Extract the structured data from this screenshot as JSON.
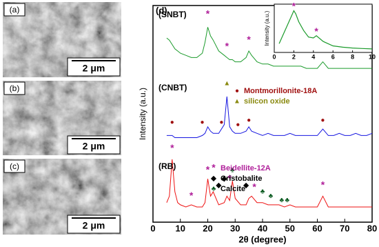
{
  "images": [
    {
      "label": "(a)",
      "scale": "2 μm"
    },
    {
      "label": "(b)",
      "scale": "2 μm"
    },
    {
      "label": "(c)",
      "scale": "2 μm"
    }
  ],
  "chart_data": [
    {
      "type": "line",
      "panel": "(d)",
      "xlabel": "2θ (degree)",
      "ylabel": "Intensity (a.u.)",
      "x": [
        5,
        6,
        7,
        8,
        9,
        10,
        12,
        14,
        16,
        18,
        19,
        20,
        21,
        22,
        24,
        26,
        27,
        28,
        29,
        30,
        32,
        34,
        35,
        36,
        38,
        40,
        42,
        44,
        46,
        48,
        50,
        52,
        54,
        56,
        58,
        60,
        62,
        64,
        66,
        68,
        70,
        72,
        74,
        76,
        78,
        80
      ],
      "series": [
        {
          "name": "(SNBT)",
          "color": "#1a9a2a",
          "values": [
            85,
            84,
            82,
            80,
            79,
            78,
            77,
            76,
            76,
            78,
            83,
            90,
            86,
            84,
            79,
            77,
            76,
            75,
            75,
            74,
            74,
            76,
            79,
            77,
            74,
            73,
            73,
            72,
            72,
            72,
            72,
            72,
            72,
            71,
            71,
            71,
            74,
            71,
            71,
            71,
            71,
            71,
            71,
            71,
            71,
            71
          ]
        },
        {
          "name": "(CNBT)",
          "color": "#1515e0",
          "values": [
            40,
            40,
            40,
            39,
            39,
            39,
            39,
            39,
            39,
            40,
            41,
            44,
            42,
            41,
            41,
            45,
            58,
            44,
            42,
            41,
            41,
            42,
            44,
            42,
            41,
            40,
            41,
            40,
            40,
            40,
            41,
            40,
            40,
            40,
            40,
            40,
            43,
            40,
            40,
            41,
            40,
            40,
            41,
            40,
            40,
            41
          ]
        },
        {
          "name": "(RB)",
          "color": "#ee1111",
          "values": [
            9,
            12,
            29,
            14,
            9,
            8,
            7,
            8,
            7,
            7,
            9,
            20,
            12,
            14,
            8,
            9,
            12,
            10,
            19,
            11,
            8,
            8,
            11,
            12,
            9,
            9,
            8,
            8,
            8,
            7,
            8,
            7,
            7,
            7,
            7,
            7,
            12,
            7,
            7,
            7,
            7,
            7,
            7,
            7,
            7,
            7
          ]
        }
      ],
      "xlim": [
        0,
        80
      ],
      "xticks": [
        0,
        10,
        20,
        30,
        40,
        50,
        60,
        70,
        80
      ],
      "ylim": [
        0,
        100
      ],
      "annotations": [
        {
          "symbol": "*",
          "color": "#b0209a",
          "x": 20,
          "y": 96
        },
        {
          "symbol": "*",
          "color": "#b0209a",
          "x": 27,
          "y": 81
        },
        {
          "symbol": "*",
          "color": "#b0209a",
          "x": 35,
          "y": 84
        },
        {
          "symbol": "▲",
          "color": "#8a8a10",
          "x": 27,
          "y": 64
        },
        {
          "symbol": "●",
          "color": "#a01010",
          "x": 7,
          "y": 46
        },
        {
          "symbol": "●",
          "color": "#a01010",
          "x": 18,
          "y": 46
        },
        {
          "symbol": "●",
          "color": "#a01010",
          "x": 25,
          "y": 46
        },
        {
          "symbol": "●",
          "color": "#a01010",
          "x": 31,
          "y": 45
        },
        {
          "symbol": "●",
          "color": "#a01010",
          "x": 35,
          "y": 47
        },
        {
          "symbol": "●",
          "color": "#a01010",
          "x": 62,
          "y": 47
        },
        {
          "symbol": "*",
          "color": "#b0209a",
          "x": 7,
          "y": 34
        },
        {
          "symbol": "*",
          "color": "#b0209a",
          "x": 14,
          "y": 12
        },
        {
          "symbol": "*",
          "color": "#b0209a",
          "x": 20,
          "y": 24
        },
        {
          "symbol": "*",
          "color": "#b0209a",
          "x": 28,
          "y": 20
        },
        {
          "symbol": "*",
          "color": "#b0209a",
          "x": 37,
          "y": 16
        },
        {
          "symbol": "*",
          "color": "#b0209a",
          "x": 62,
          "y": 17
        },
        {
          "symbol": "◆",
          "color": "#000000",
          "x": 24,
          "y": 17
        },
        {
          "symbol": "◆",
          "color": "#000000",
          "x": 26,
          "y": 20
        },
        {
          "symbol": "◆",
          "color": "#000000",
          "x": 34,
          "y": 17
        },
        {
          "symbol": "♣",
          "color": "#0a5a20",
          "x": 29,
          "y": 24
        },
        {
          "symbol": "♣",
          "color": "#0a5a20",
          "x": 40,
          "y": 14
        },
        {
          "symbol": "♣",
          "color": "#0a5a20",
          "x": 43,
          "y": 12
        },
        {
          "symbol": "♣",
          "color": "#0a5a20",
          "x": 47,
          "y": 10
        },
        {
          "symbol": "♣",
          "color": "#0a5a20",
          "x": 49,
          "y": 10
        }
      ],
      "legend": [
        {
          "symbol": "●",
          "label": "Montmorillonite-18A",
          "color": "#a01010"
        },
        {
          "symbol": "▲",
          "label": "silicon oxide",
          "color": "#8a8a10"
        },
        {
          "symbol": "*",
          "label": "Beidellite-12A",
          "color": "#b0209a"
        },
        {
          "symbol": "◆",
          "label": "Cristobalite",
          "color": "#000000"
        },
        {
          "symbol": "♣",
          "label": "Calcite",
          "color": "#0a5a20"
        }
      ]
    },
    {
      "type": "line",
      "ylabel": "Intensity (a.u.)",
      "x": [
        0.5,
        1,
        1.5,
        1.8,
        2,
        2.2,
        2.5,
        3,
        3.5,
        4,
        4.3,
        5,
        6,
        7,
        8,
        9,
        10
      ],
      "series": [
        {
          "color": "#1a9a2a",
          "values": [
            20,
            45,
            70,
            85,
            95,
            88,
            70,
            50,
            35,
            33,
            38,
            25,
            15,
            12,
            10,
            9,
            8
          ]
        }
      ],
      "xlim": [
        0,
        10
      ],
      "xticks": [
        0,
        2,
        4,
        6,
        8,
        10
      ],
      "ylim": [
        0,
        110
      ],
      "annotations": [
        {
          "symbol": "*",
          "color": "#b0209a",
          "x": 2,
          "y": 104
        },
        {
          "symbol": "*",
          "color": "#b0209a",
          "x": 4.3,
          "y": 47
        }
      ]
    }
  ]
}
